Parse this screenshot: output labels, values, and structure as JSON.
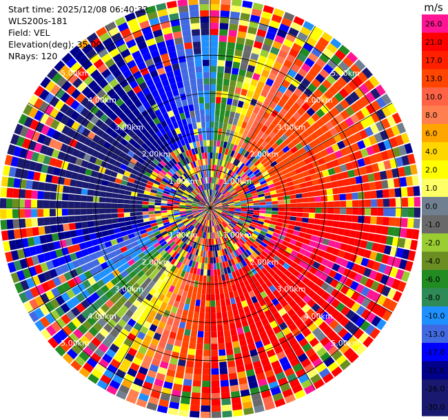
{
  "header": {
    "start_time": "Start time: 2025/12/08 06:40:32",
    "instrument": "WLS200s-181",
    "field": "Field: VEL",
    "elevation": "Elevation(deg): 35.00",
    "nrays": "NRays: 120"
  },
  "colorbar": {
    "unit": "m/s",
    "levels": [
      {
        "label": "26.0",
        "color": "#ff1493"
      },
      {
        "label": "21.0",
        "color": "#ff0000"
      },
      {
        "label": "17.0",
        "color": "#ff2000"
      },
      {
        "label": "13.0",
        "color": "#ff4500"
      },
      {
        "label": "10.0",
        "color": "#ff6347"
      },
      {
        "label": "8.0",
        "color": "#ff7f50"
      },
      {
        "label": "6.0",
        "color": "#ffa500"
      },
      {
        "label": "4.0",
        "color": "#ffd700"
      },
      {
        "label": "2.0",
        "color": "#ffff00"
      },
      {
        "label": "1.0",
        "color": "#ffff66"
      },
      {
        "label": "0.0",
        "color": "#708090"
      },
      {
        "label": "-1.0",
        "color": "#696969"
      },
      {
        "label": "-2.0",
        "color": "#9acd32"
      },
      {
        "label": "-4.0",
        "color": "#6b8e23"
      },
      {
        "label": "-6.0",
        "color": "#228b22"
      },
      {
        "label": "-8.0",
        "color": "#2e8b57"
      },
      {
        "label": "-10.0",
        "color": "#1e90ff"
      },
      {
        "label": "-13.0",
        "color": "#4169e1"
      },
      {
        "label": "-17.0",
        "color": "#0000ff"
      },
      {
        "label": "-21.0",
        "color": "#00008b"
      },
      {
        "label": "-26.0",
        "color": "#191970"
      },
      {
        "label": "-30.0",
        "color": "#191970"
      }
    ]
  },
  "chart_data": {
    "type": "heatmap",
    "projection": "polar PPI",
    "field": "VEL",
    "units": "m/s",
    "n_rays": 120,
    "elevation_deg": 35.0,
    "range_rings_km": [
      1.0,
      2.0,
      3.0,
      4.0,
      5.0
    ],
    "ring_labels": [
      "1.00km",
      "2.00km",
      "3.00km",
      "4.00km",
      "5.00km"
    ],
    "vmin": -30.0,
    "vmax": 30.0,
    "max_range_km": 5.5,
    "grid": true,
    "dominant_pattern": [
      {
        "azimuth_deg": 30,
        "velocity_ms": 13.0
      },
      {
        "azimuth_deg": 75,
        "velocity_ms": 17.0
      },
      {
        "azimuth_deg": 110,
        "velocity_ms": 26.0
      },
      {
        "azimuth_deg": 180,
        "velocity_ms": 21.0
      },
      {
        "azimuth_deg": 210,
        "velocity_ms": 4.0
      },
      {
        "azimuth_deg": 230,
        "velocity_ms": -6.0
      },
      {
        "azimuth_deg": 250,
        "velocity_ms": -13.0
      },
      {
        "azimuth_deg": 270,
        "velocity_ms": -26.0
      },
      {
        "azimuth_deg": 310,
        "velocity_ms": -21.0
      },
      {
        "azimuth_deg": 350,
        "velocity_ms": -13.0
      },
      {
        "azimuth_deg": 10,
        "velocity_ms": -4.0
      }
    ]
  }
}
